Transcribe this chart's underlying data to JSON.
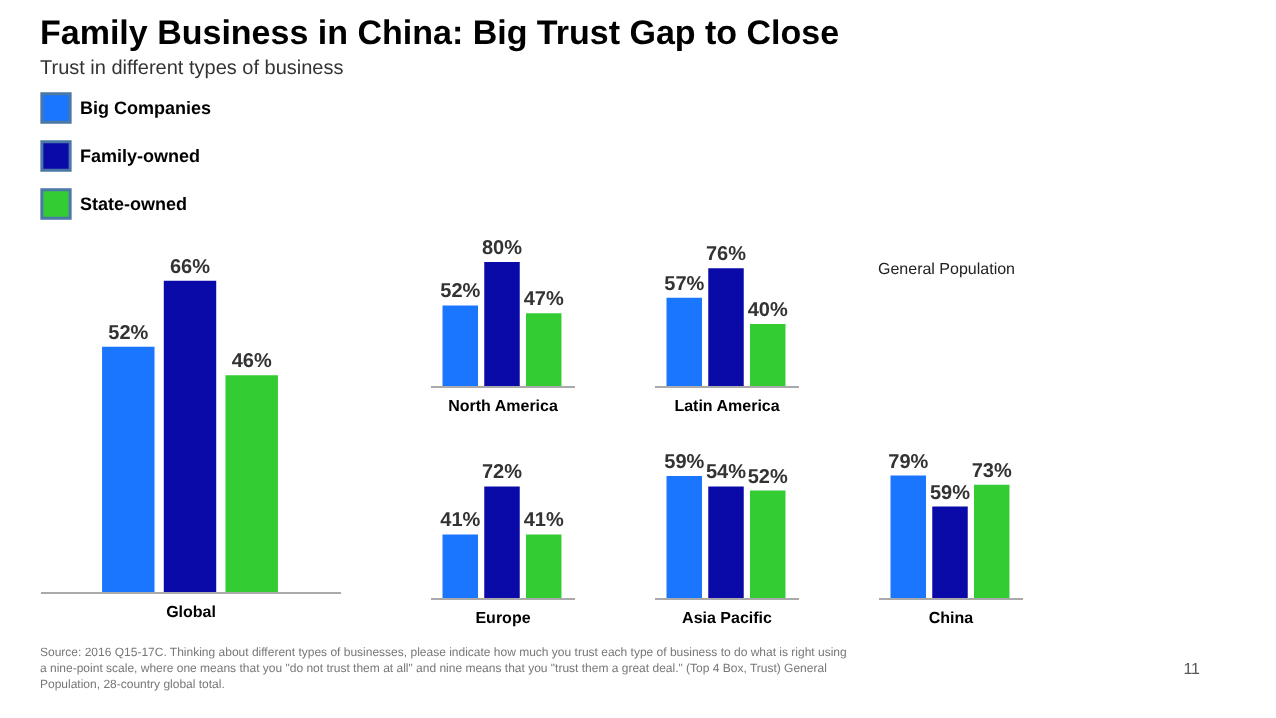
{
  "chart_data": [
    {
      "type": "bar",
      "title": "Family Business in China: Big Trust Gap to Close",
      "subtitle": "Trust in different types of business",
      "categories": [
        null
      ],
      "xlabel": "Global",
      "legend": "top left",
      "series": [
        {
          "name": "Big Companies",
          "color": "#1a75ff",
          "values": [
            52
          ],
          "value_labels": [
            "52%"
          ]
        },
        {
          "name": "Family-owned",
          "color": "#0a0aa8",
          "values": [
            66
          ],
          "value_labels": [
            "66%"
          ]
        },
        {
          "name": "State-owned",
          "color": "#33cc33",
          "values": [
            46
          ],
          "value_labels": [
            "46%"
          ]
        }
      ],
      "annotations": [
        "General Population",
        "Source: 2016 Q15-17C. Thinking about different types of businesses, please indicate how much you trust each type of business to do what is right using a nine-point scale, where one means that you \"do not trust them at all\" and nine means that you \"trust them a great deal.\" (Top 4 Box, Trust) General Population, 28-country global total.",
        "11"
      ]
    },
    {
      "type": "bar",
      "categories": [
        null,
        null,
        null
      ],
      "xlabel": "North America",
      "values": [
        52,
        80,
        47
      ],
      "colors": [
        "#1a75ff",
        "#0a0aa8",
        "#33cc33"
      ],
      "value_labels": [
        "52%",
        "80%",
        "47%"
      ]
    },
    {
      "type": "bar",
      "categories": [
        null,
        null,
        null
      ],
      "xlabel": "Latin America",
      "values": [
        57,
        76,
        40
      ],
      "colors": [
        "#1a75ff",
        "#0a0aa8",
        "#33cc33"
      ],
      "value_labels": [
        "57%",
        "76%",
        "40%"
      ]
    },
    {
      "type": "bar",
      "categories": [
        null,
        null,
        null
      ],
      "xlabel": "Europe",
      "values": [
        41,
        72,
        41
      ],
      "colors": [
        "#1a75ff",
        "#0a0aa8",
        "#33cc33"
      ],
      "value_labels": [
        "41%",
        "72%",
        "41%"
      ]
    },
    {
      "type": "bar",
      "categories": [
        null,
        null,
        null
      ],
      "xlabel": "Asia Pacific",
      "values": [
        59,
        54,
        52
      ],
      "colors": [
        "#1a75ff",
        "#0a0aa8",
        "#33cc33"
      ],
      "value_labels": [
        "59%",
        "54%",
        "52%"
      ]
    },
    {
      "type": "bar",
      "categories": [
        null,
        null,
        null
      ],
      "xlabel": "China",
      "values": [
        79,
        59,
        73
      ],
      "colors": [
        "#1a75ff",
        "#0a0aa8",
        "#33cc33"
      ],
      "value_labels": [
        "79%",
        "59%",
        "73%"
      ]
    }
  ]
}
